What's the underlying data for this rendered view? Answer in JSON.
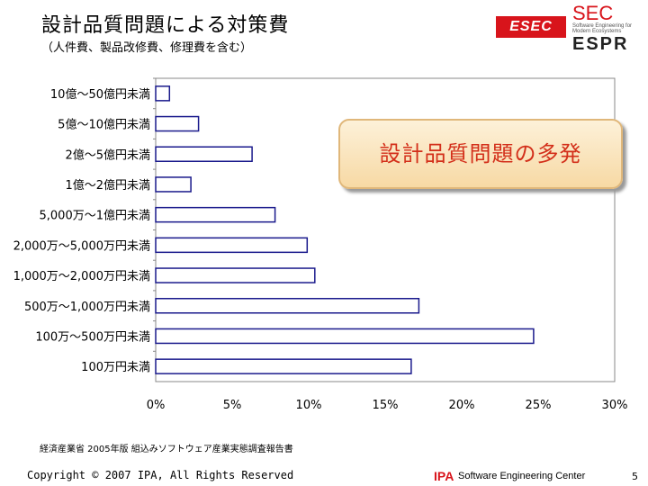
{
  "header": {
    "title": "設計品質問題による対策費",
    "subtitle": "（人件費、製品改修費、修理費を含む）"
  },
  "logos": {
    "esec": "ESEC",
    "sec": "SEC",
    "sec_sub": "Software Engineering for Modern Ecosystems",
    "espr": "ESPR"
  },
  "callout": {
    "text": "設計品質問題の多発",
    "color": "#d32f1a"
  },
  "chart_data": {
    "type": "bar",
    "orientation": "horizontal",
    "categories": [
      "10億～50億円未満",
      "5億～10億円未満",
      "2億～5億円未満",
      "1億～2億円未満",
      "5,000万～1億円未満",
      "2,000万～5,000万円未満",
      "1,000万～2,000万円未満",
      "500万～1,000万円未満",
      "100万～500万円未満",
      "100万円未満"
    ],
    "values": [
      0.9,
      2.8,
      6.3,
      2.3,
      7.8,
      9.9,
      10.4,
      17.2,
      24.7,
      16.7
    ],
    "xlim": [
      0,
      30
    ],
    "xticks": [
      "0%",
      "5%",
      "10%",
      "15%",
      "20%",
      "25%",
      "30%"
    ],
    "grid": false,
    "legend": "none",
    "bar_color": "#1a1a8c"
  },
  "footer": {
    "source": "経済産業省 2005年版 組込みソフトウェア産業実態調査報告書",
    "copyright": "Copyright © 2007 IPA, All Rights Reserved",
    "ipa": "IPA",
    "center": "Software Engineering Center",
    "page": "5"
  }
}
